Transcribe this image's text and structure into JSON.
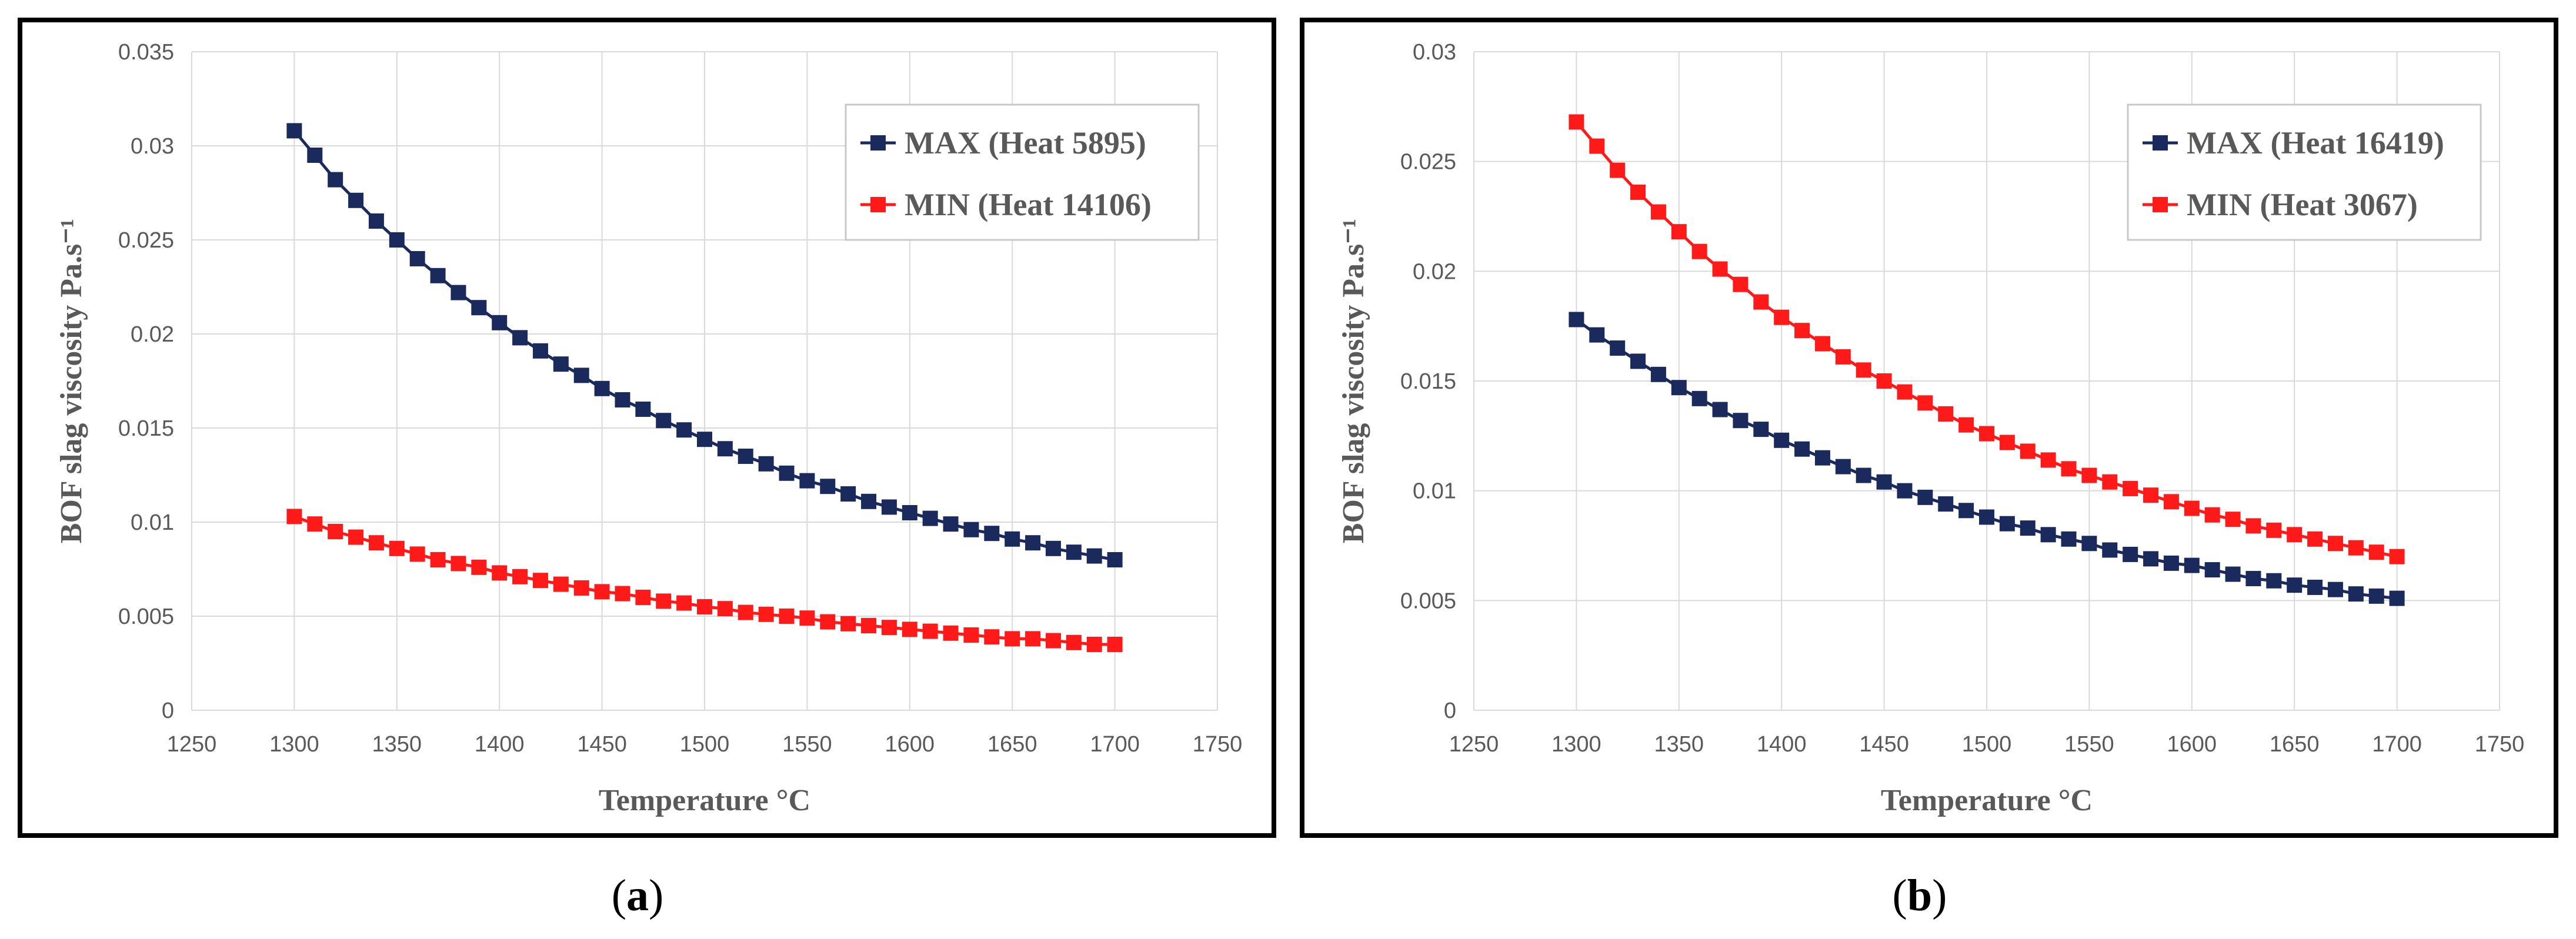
{
  "chart_data": [
    {
      "type": "line",
      "panel_label": "a",
      "xlabel": "Temperature °C",
      "ylabel": "BOF slag viscosity Pa.s⁻¹",
      "xlim": [
        1250,
        1750
      ],
      "ylim": [
        0,
        0.035
      ],
      "x_ticks": [
        "1250",
        "1300",
        "1350",
        "1400",
        "1450",
        "1500",
        "1550",
        "1600",
        "1650",
        "1700",
        "1750"
      ],
      "y_ticks": [
        "0",
        "0.005",
        "0.01",
        "0.015",
        "0.02",
        "0.025",
        "0.03",
        "0.035"
      ],
      "grid": true,
      "legend_position": "top-right",
      "x": [
        1300,
        1310,
        1320,
        1330,
        1340,
        1350,
        1360,
        1370,
        1380,
        1390,
        1400,
        1410,
        1420,
        1430,
        1440,
        1450,
        1460,
        1470,
        1480,
        1490,
        1500,
        1510,
        1520,
        1530,
        1540,
        1550,
        1560,
        1570,
        1580,
        1590,
        1600,
        1610,
        1620,
        1630,
        1640,
        1650,
        1660,
        1670,
        1680,
        1690,
        1700
      ],
      "series": [
        {
          "name": "MAX (Heat 5895)",
          "color": "#1b2a5c",
          "values": [
            0.0308,
            0.0295,
            0.0282,
            0.0271,
            0.026,
            0.025,
            0.024,
            0.0231,
            0.0222,
            0.0214,
            0.0206,
            0.0198,
            0.0191,
            0.0184,
            0.0178,
            0.0171,
            0.0165,
            0.016,
            0.0154,
            0.0149,
            0.0144,
            0.0139,
            0.0135,
            0.0131,
            0.0126,
            0.0122,
            0.0119,
            0.0115,
            0.0111,
            0.0108,
            0.0105,
            0.0102,
            0.0099,
            0.0096,
            0.0094,
            0.0091,
            0.0089,
            0.0086,
            0.0084,
            0.0082,
            0.008
          ]
        },
        {
          "name": "MIN (Heat 14106)",
          "color": "#ff1a1a",
          "values": [
            0.0103,
            0.0099,
            0.0095,
            0.0092,
            0.0089,
            0.0086,
            0.0083,
            0.008,
            0.0078,
            0.0076,
            0.0073,
            0.0071,
            0.0069,
            0.0067,
            0.0065,
            0.0063,
            0.0062,
            0.006,
            0.0058,
            0.0057,
            0.0055,
            0.0054,
            0.0052,
            0.0051,
            0.005,
            0.0049,
            0.0047,
            0.0046,
            0.0045,
            0.0044,
            0.0043,
            0.0042,
            0.0041,
            0.004,
            0.0039,
            0.0038,
            0.0038,
            0.0037,
            0.0036,
            0.0035,
            0.0035
          ]
        }
      ]
    },
    {
      "type": "line",
      "panel_label": "b",
      "xlabel": "Temperature °C",
      "ylabel": "BOF slag viscosity Pa.s⁻¹",
      "xlim": [
        1250,
        1750
      ],
      "ylim": [
        0,
        0.03
      ],
      "x_ticks": [
        "1250",
        "1300",
        "1350",
        "1400",
        "1450",
        "1500",
        "1550",
        "1600",
        "1650",
        "1700",
        "1750"
      ],
      "y_ticks": [
        "0",
        "0.005",
        "0.01",
        "0.015",
        "0.02",
        "0.025",
        "0.03"
      ],
      "grid": true,
      "legend_position": "top-right",
      "x": [
        1300,
        1310,
        1320,
        1330,
        1340,
        1350,
        1360,
        1370,
        1380,
        1390,
        1400,
        1410,
        1420,
        1430,
        1440,
        1450,
        1460,
        1470,
        1480,
        1490,
        1500,
        1510,
        1520,
        1530,
        1540,
        1550,
        1560,
        1570,
        1580,
        1590,
        1600,
        1610,
        1620,
        1630,
        1640,
        1650,
        1660,
        1670,
        1680,
        1690,
        1700
      ],
      "series": [
        {
          "name": "MAX (Heat 16419)",
          "color": "#1b2a5c",
          "values": [
            0.0178,
            0.0171,
            0.0165,
            0.0159,
            0.0153,
            0.0147,
            0.0142,
            0.0137,
            0.0132,
            0.0128,
            0.0123,
            0.0119,
            0.0115,
            0.0111,
            0.0107,
            0.0104,
            0.01,
            0.0097,
            0.0094,
            0.0091,
            0.0088,
            0.0085,
            0.0083,
            0.008,
            0.0078,
            0.0076,
            0.0073,
            0.0071,
            0.0069,
            0.0067,
            0.0066,
            0.0064,
            0.0062,
            0.006,
            0.0059,
            0.0057,
            0.0056,
            0.0055,
            0.0053,
            0.0052,
            0.0051
          ]
        },
        {
          "name": "MIN (Heat 3067)",
          "color": "#ff1a1a",
          "values": [
            0.0268,
            0.0257,
            0.0246,
            0.0236,
            0.0227,
            0.0218,
            0.0209,
            0.0201,
            0.0194,
            0.0186,
            0.0179,
            0.0173,
            0.0167,
            0.0161,
            0.0155,
            0.015,
            0.0145,
            0.014,
            0.0135,
            0.013,
            0.0126,
            0.0122,
            0.0118,
            0.0114,
            0.011,
            0.0107,
            0.0104,
            0.0101,
            0.0098,
            0.0095,
            0.0092,
            0.0089,
            0.0087,
            0.0084,
            0.0082,
            0.008,
            0.0078,
            0.0076,
            0.0074,
            0.0072,
            0.007
          ]
        }
      ]
    }
  ],
  "captions": [
    "a",
    "b"
  ]
}
